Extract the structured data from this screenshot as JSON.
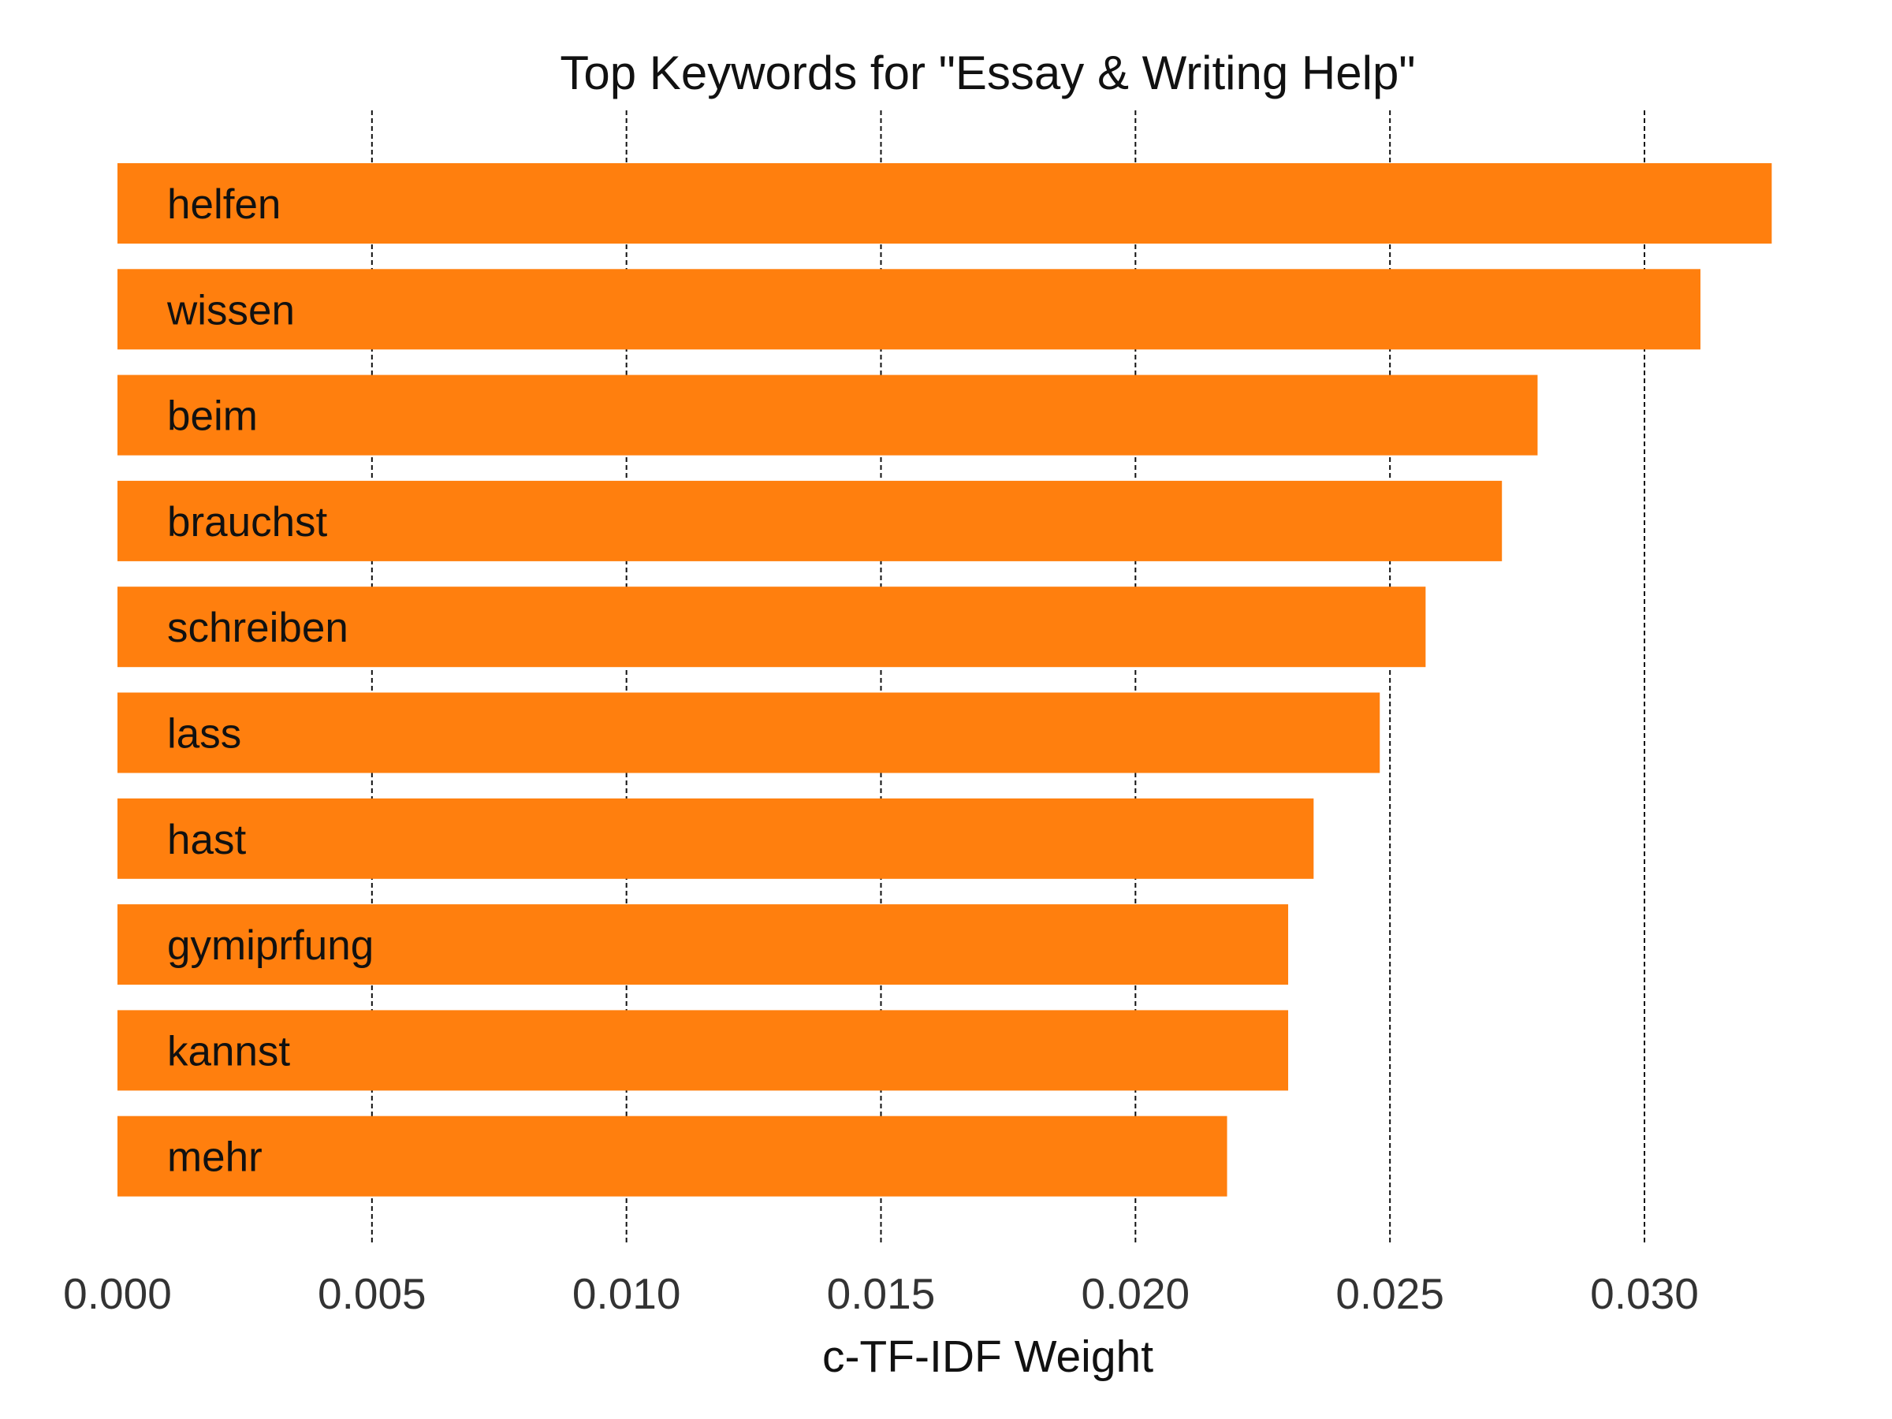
{
  "chart_data": {
    "type": "bar",
    "orientation": "horizontal",
    "title": "Top Keywords for \"Essay & Writing Help\"",
    "xlabel": "c-TF-IDF Weight",
    "ylabel": "",
    "categories": [
      "helfen",
      "wissen",
      "beim",
      "brauchst",
      "schreiben",
      "lass",
      "hast",
      "gymiprfung",
      "kannst",
      "mehr"
    ],
    "values": [
      0.0325,
      0.0311,
      0.0279,
      0.0272,
      0.0257,
      0.0248,
      0.0235,
      0.023,
      0.023,
      0.0218
    ],
    "xlim": [
      0.0,
      0.033
    ],
    "x_ticks": [
      "0.000",
      "0.005",
      "0.010",
      "0.015",
      "0.020",
      "0.025",
      "0.030"
    ],
    "grid": "x-dashed",
    "color": "#ff7f0e",
    "legend": "none"
  }
}
